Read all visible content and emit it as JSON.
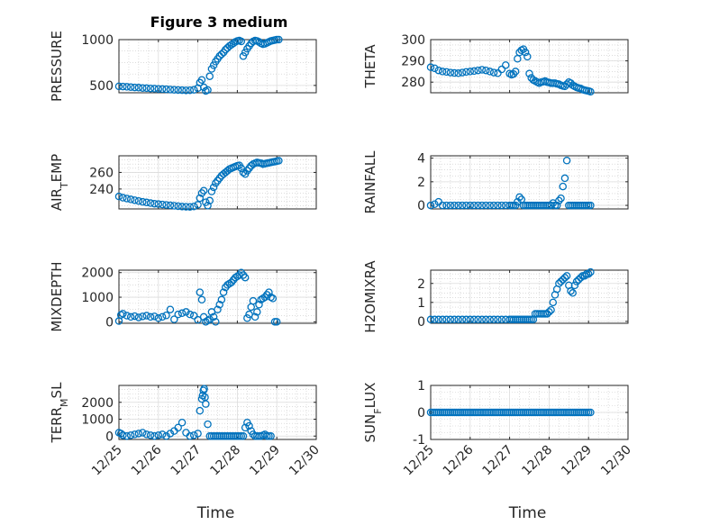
{
  "title": "Figure 3 medium",
  "colors": {
    "marker": "#0072BD",
    "axis": "#262626",
    "grid": "#dcdcdc"
  },
  "chart_data": [
    {
      "type": "scatter",
      "ylabel": "PRESSURE",
      "xlabel": "",
      "x_ticklabels": [],
      "ylim": [
        420,
        1000
      ],
      "yticks": [
        500,
        1000
      ],
      "ytick_labels": [
        "500",
        "1000"
      ],
      "x": [
        25.0,
        25.1,
        25.2,
        25.3,
        25.4,
        25.5,
        25.6,
        25.7,
        25.8,
        25.9,
        26.0,
        26.1,
        26.2,
        26.3,
        26.4,
        26.5,
        26.6,
        26.7,
        26.8,
        26.9,
        27.0,
        27.05,
        27.1,
        27.15,
        27.2,
        27.25,
        27.3,
        27.35,
        27.4,
        27.45,
        27.5,
        27.55,
        27.6,
        27.65,
        27.7,
        27.75,
        27.8,
        27.85,
        27.9,
        27.95,
        28.0,
        28.05,
        28.1,
        28.15,
        28.2,
        28.25,
        28.3,
        28.35,
        28.4,
        28.45,
        28.5,
        28.55,
        28.6,
        28.65,
        28.7,
        28.75,
        28.8,
        28.85,
        28.9,
        28.95,
        29.0,
        29.05
      ],
      "y": [
        490,
        488,
        485,
        482,
        478,
        476,
        472,
        470,
        467,
        465,
        462,
        460,
        458,
        455,
        452,
        450,
        448,
        446,
        447,
        452,
        470,
        530,
        560,
        480,
        440,
        450,
        600,
        680,
        720,
        760,
        790,
        820,
        840,
        860,
        890,
        910,
        930,
        945,
        960,
        975,
        985,
        990,
        980,
        820,
        860,
        900,
        930,
        960,
        980,
        990,
        985,
        975,
        960,
        950,
        955,
        965,
        975,
        985,
        990,
        995,
        1000,
        1000
      ]
    },
    {
      "type": "scatter",
      "ylabel": "THETA",
      "xlabel": "",
      "x_ticklabels": [],
      "ylim": [
        275,
        300
      ],
      "yticks": [
        280,
        290,
        300
      ],
      "ytick_labels": [
        "280",
        "290",
        "300"
      ],
      "x": [
        25.0,
        25.1,
        25.2,
        25.3,
        25.4,
        25.5,
        25.6,
        25.7,
        25.8,
        25.9,
        26.0,
        26.1,
        26.2,
        26.3,
        26.4,
        26.5,
        26.6,
        26.7,
        26.8,
        26.9,
        27.0,
        27.05,
        27.1,
        27.15,
        27.2,
        27.25,
        27.3,
        27.35,
        27.4,
        27.45,
        27.5,
        27.55,
        27.6,
        27.65,
        27.7,
        27.75,
        27.8,
        27.85,
        27.9,
        27.95,
        28.0,
        28.05,
        28.1,
        28.15,
        28.2,
        28.25,
        28.3,
        28.35,
        28.4,
        28.45,
        28.5,
        28.55,
        28.6,
        28.65,
        28.7,
        28.75,
        28.8,
        28.85,
        28.9,
        28.95,
        29.0,
        29.05
      ],
      "y": [
        287,
        286.5,
        285.5,
        285,
        284.8,
        284.5,
        284.3,
        284.2,
        284.5,
        284.8,
        285,
        285.2,
        285.5,
        285.8,
        285.5,
        285,
        284.5,
        284.2,
        286,
        288,
        284,
        283.5,
        283.8,
        285,
        291,
        294,
        295,
        295.5,
        294,
        292,
        284,
        282,
        281,
        280.5,
        280,
        279.5,
        280,
        280.2,
        280.5,
        280,
        279.8,
        279.5,
        279.5,
        279.5,
        279.2,
        279,
        278.5,
        278.2,
        278,
        279,
        280,
        279.5,
        278.5,
        278,
        277.5,
        277.2,
        277,
        276.5,
        276.2,
        276,
        275.8,
        275.5
      ]
    },
    {
      "type": "scatter",
      "ylabel": "AIR_TEMP",
      "xlabel": "",
      "x_ticklabels": [],
      "ylim": [
        216,
        280
      ],
      "yticks": [
        240,
        260
      ],
      "ytick_labels": [
        "240",
        "260"
      ],
      "x": [
        25.0,
        25.1,
        25.2,
        25.3,
        25.4,
        25.5,
        25.6,
        25.7,
        25.8,
        25.9,
        26.0,
        26.1,
        26.2,
        26.3,
        26.4,
        26.5,
        26.6,
        26.7,
        26.8,
        26.9,
        27.0,
        27.05,
        27.1,
        27.15,
        27.2,
        27.25,
        27.3,
        27.35,
        27.4,
        27.45,
        27.5,
        27.55,
        27.6,
        27.65,
        27.7,
        27.75,
        27.8,
        27.85,
        27.9,
        27.95,
        28.0,
        28.05,
        28.1,
        28.15,
        28.2,
        28.25,
        28.3,
        28.35,
        28.4,
        28.45,
        28.5,
        28.55,
        28.6,
        28.65,
        28.7,
        28.75,
        28.8,
        28.85,
        28.9,
        28.95,
        29.0,
        29.05
      ],
      "y": [
        231,
        229.5,
        228.5,
        227.5,
        226.5,
        225.5,
        224.5,
        223.8,
        223,
        222.3,
        221.8,
        221.3,
        220.8,
        220.3,
        219.8,
        219.3,
        218.8,
        218.6,
        218.5,
        219,
        221,
        229,
        235,
        238,
        224,
        220,
        226,
        237,
        242,
        247,
        250,
        253,
        256,
        258,
        260,
        262,
        264,
        265,
        266,
        267,
        268,
        268.5,
        265,
        260,
        258,
        262,
        265,
        268,
        270,
        271,
        272,
        271.5,
        271,
        270,
        270.5,
        271,
        271.5,
        272,
        272.5,
        273,
        273.5,
        274
      ]
    },
    {
      "type": "scatter",
      "ylabel": "RAINFALL",
      "xlabel": "",
      "x_ticklabels": [],
      "ylim": [
        -0.3,
        4.2
      ],
      "yticks": [
        0,
        2,
        4
      ],
      "ytick_labels": [
        "0",
        "2",
        "4"
      ],
      "x": [
        25.0,
        25.1,
        25.2,
        25.3,
        25.4,
        25.5,
        25.6,
        25.7,
        25.8,
        25.9,
        26.0,
        26.1,
        26.2,
        26.3,
        26.4,
        26.5,
        26.6,
        26.7,
        26.8,
        26.9,
        27.0,
        27.05,
        27.1,
        27.15,
        27.2,
        27.25,
        27.3,
        27.35,
        27.4,
        27.45,
        27.5,
        27.55,
        27.6,
        27.65,
        27.7,
        27.75,
        27.8,
        27.85,
        27.9,
        27.95,
        28.0,
        28.05,
        28.1,
        28.15,
        28.2,
        28.25,
        28.3,
        28.35,
        28.4,
        28.45,
        28.5,
        28.55,
        28.6,
        28.65,
        28.7,
        28.75,
        28.8,
        28.85,
        28.9,
        28.95,
        29.0,
        29.05
      ],
      "y": [
        0,
        0.1,
        0.3,
        0,
        0,
        0,
        0,
        0,
        0,
        0,
        0,
        0,
        0,
        0,
        0,
        0,
        0,
        0,
        0,
        0,
        0,
        0,
        0,
        0,
        0.3,
        0.7,
        0.5,
        0,
        0,
        0,
        0,
        0,
        0,
        0,
        0,
        0,
        0,
        0,
        0,
        0,
        0,
        0,
        0.2,
        0,
        0,
        0.4,
        0.6,
        1.6,
        2.3,
        3.8,
        0,
        0,
        0,
        0,
        0,
        0,
        0,
        0,
        0,
        0,
        0,
        0
      ]
    },
    {
      "type": "scatter",
      "ylabel": "MIXDEPTH",
      "xlabel": "",
      "x_ticklabels": [],
      "ylim": [
        -60,
        2100
      ],
      "yticks": [
        0,
        1000,
        2000
      ],
      "ytick_labels": [
        "0",
        "1000",
        "2000"
      ],
      "x": [
        25.0,
        25.05,
        25.1,
        25.2,
        25.3,
        25.4,
        25.5,
        25.6,
        25.7,
        25.8,
        25.9,
        26.0,
        26.1,
        26.2,
        26.3,
        26.4,
        26.5,
        26.6,
        26.7,
        26.8,
        26.9,
        27.0,
        27.05,
        27.1,
        27.15,
        27.2,
        27.25,
        27.3,
        27.35,
        27.4,
        27.45,
        27.5,
        27.55,
        27.6,
        27.65,
        27.7,
        27.75,
        27.8,
        27.85,
        27.9,
        27.95,
        28.0,
        28.05,
        28.1,
        28.15,
        28.2,
        28.25,
        28.3,
        28.35,
        28.4,
        28.45,
        28.5,
        28.55,
        28.6,
        28.65,
        28.7,
        28.75,
        28.8,
        28.85,
        28.9,
        28.95,
        29.0
      ],
      "y": [
        30,
        280,
        330,
        250,
        200,
        230,
        180,
        220,
        250,
        200,
        220,
        150,
        200,
        260,
        500,
        100,
        300,
        350,
        400,
        300,
        250,
        80,
        1200,
        900,
        200,
        0,
        50,
        100,
        400,
        200,
        0,
        500,
        700,
        900,
        1200,
        1400,
        1500,
        1550,
        1600,
        1700,
        1800,
        1850,
        1900,
        2000,
        1900,
        1800,
        150,
        300,
        600,
        850,
        200,
        400,
        700,
        900,
        950,
        1000,
        1100,
        1200,
        1000,
        950,
        0,
        0
      ]
    },
    {
      "type": "scatter",
      "ylabel": "H2OMIXRA",
      "xlabel": "",
      "x_ticklabels": [],
      "ylim": [
        -0.1,
        2.7
      ],
      "yticks": [
        0,
        1,
        2
      ],
      "ytick_labels": [
        "0",
        "1",
        "2"
      ],
      "x": [
        25.0,
        25.1,
        25.2,
        25.3,
        25.4,
        25.5,
        25.6,
        25.7,
        25.8,
        25.9,
        26.0,
        26.1,
        26.2,
        26.3,
        26.4,
        26.5,
        26.6,
        26.7,
        26.8,
        26.9,
        27.0,
        27.05,
        27.1,
        27.15,
        27.2,
        27.25,
        27.3,
        27.35,
        27.4,
        27.45,
        27.5,
        27.55,
        27.6,
        27.65,
        27.7,
        27.75,
        27.8,
        27.85,
        27.9,
        27.95,
        28.0,
        28.05,
        28.1,
        28.15,
        28.2,
        28.25,
        28.3,
        28.35,
        28.4,
        28.45,
        28.5,
        28.55,
        28.6,
        28.65,
        28.7,
        28.75,
        28.8,
        28.85,
        28.9,
        28.95,
        29.0,
        29.05
      ],
      "y": [
        0.1,
        0.1,
        0.1,
        0.1,
        0.1,
        0.1,
        0.1,
        0.1,
        0.1,
        0.1,
        0.1,
        0.1,
        0.1,
        0.1,
        0.1,
        0.1,
        0.1,
        0.1,
        0.1,
        0.1,
        0.1,
        0.1,
        0.1,
        0.1,
        0.1,
        0.1,
        0.1,
        0.1,
        0.1,
        0.1,
        0.1,
        0.1,
        0.1,
        0.4,
        0.4,
        0.4,
        0.4,
        0.4,
        0.4,
        0.4,
        0.5,
        0.6,
        1.0,
        1.4,
        1.7,
        2.0,
        2.1,
        2.2,
        2.3,
        2.4,
        1.9,
        1.6,
        1.5,
        1.9,
        2.1,
        2.2,
        2.3,
        2.4,
        2.4,
        2.5,
        2.5,
        2.6
      ]
    },
    {
      "type": "scatter",
      "ylabel": "TERR_MSL",
      "xlabel": "Time",
      "x_ticklabels": [
        "12/25",
        "12/26",
        "12/27",
        "12/28",
        "12/29",
        "12/30"
      ],
      "ylim": [
        -200,
        3000
      ],
      "yticks": [
        0,
        1000,
        2000
      ],
      "ytick_labels": [
        "0",
        "1000",
        "2000"
      ],
      "x": [
        25.0,
        25.05,
        25.1,
        25.2,
        25.3,
        25.4,
        25.5,
        25.6,
        25.7,
        25.8,
        25.9,
        26.0,
        26.1,
        26.2,
        26.3,
        26.4,
        26.5,
        26.6,
        26.7,
        26.8,
        26.9,
        27.0,
        27.05,
        27.1,
        27.12,
        27.14,
        27.16,
        27.18,
        27.2,
        27.25,
        27.3,
        27.35,
        27.4,
        27.45,
        27.5,
        27.55,
        27.6,
        27.65,
        27.7,
        27.75,
        27.8,
        27.85,
        27.9,
        27.95,
        28.0,
        28.05,
        28.1,
        28.15,
        28.2,
        28.25,
        28.3,
        28.35,
        28.4,
        28.45,
        28.5,
        28.55,
        28.6,
        28.65,
        28.7,
        28.75,
        28.8,
        28.85
      ],
      "y": [
        200,
        150,
        50,
        0,
        50,
        100,
        150,
        200,
        100,
        50,
        0,
        50,
        100,
        0,
        150,
        300,
        500,
        800,
        200,
        0,
        50,
        150,
        1500,
        2200,
        2400,
        2700,
        2800,
        2300,
        1900,
        700,
        0,
        0,
        0,
        0,
        0,
        0,
        0,
        0,
        0,
        0,
        0,
        0,
        0,
        0,
        0,
        0,
        0,
        0,
        500,
        800,
        600,
        300,
        100,
        0,
        0,
        0,
        0,
        50,
        100,
        0,
        0,
        0
      ]
    },
    {
      "type": "scatter",
      "ylabel": "SUN_FLUX",
      "xlabel": "Time",
      "x_ticklabels": [
        "12/25",
        "12/26",
        "12/27",
        "12/28",
        "12/29",
        "12/30"
      ],
      "ylim": [
        -1,
        1
      ],
      "yticks": [
        -1,
        0,
        1
      ],
      "ytick_labels": [
        "-1",
        "0",
        "1"
      ],
      "x": [
        25.0,
        25.05,
        25.1,
        25.15,
        25.2,
        25.25,
        25.3,
        25.35,
        25.4,
        25.45,
        25.5,
        25.55,
        25.6,
        25.65,
        25.7,
        25.75,
        25.8,
        25.85,
        25.9,
        25.95,
        26.0,
        26.05,
        26.1,
        26.15,
        26.2,
        26.25,
        26.3,
        26.35,
        26.4,
        26.45,
        26.5,
        26.55,
        26.6,
        26.65,
        26.7,
        26.75,
        26.8,
        26.85,
        26.9,
        26.95,
        27.0,
        27.05,
        27.1,
        27.15,
        27.2,
        27.25,
        27.3,
        27.35,
        27.4,
        27.45,
        27.5,
        27.55,
        27.6,
        27.65,
        27.7,
        27.75,
        27.8,
        27.85,
        27.9,
        27.95,
        28.0,
        28.05,
        28.1,
        28.15,
        28.2,
        28.25,
        28.3,
        28.35,
        28.4,
        28.45,
        28.5,
        28.55,
        28.6,
        28.65,
        28.7,
        28.75,
        28.8,
        28.85,
        28.9,
        28.95,
        29.0,
        29.05
      ],
      "y": [
        0,
        0,
        0,
        0,
        0,
        0,
        0,
        0,
        0,
        0,
        0,
        0,
        0,
        0,
        0,
        0,
        0,
        0,
        0,
        0,
        0,
        0,
        0,
        0,
        0,
        0,
        0,
        0,
        0,
        0,
        0,
        0,
        0,
        0,
        0,
        0,
        0,
        0,
        0,
        0,
        0,
        0,
        0,
        0,
        0,
        0,
        0,
        0,
        0,
        0,
        0,
        0,
        0,
        0,
        0,
        0,
        0,
        0,
        0,
        0,
        0,
        0,
        0,
        0,
        0,
        0,
        0,
        0,
        0,
        0,
        0,
        0,
        0,
        0,
        0,
        0,
        0,
        0,
        0,
        0,
        0,
        0
      ]
    }
  ]
}
